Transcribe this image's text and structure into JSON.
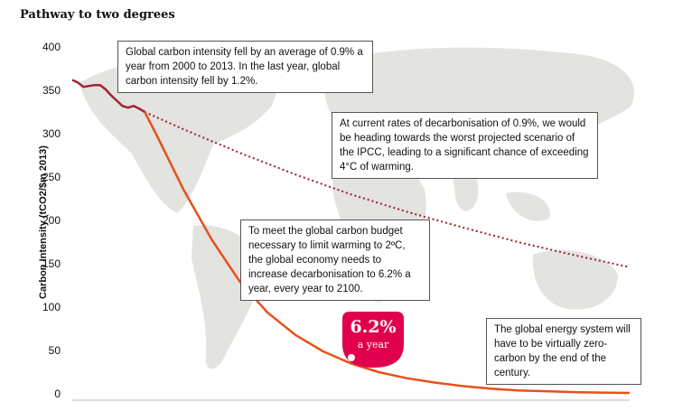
{
  "colors": {
    "historical": "#a12236",
    "current_rate": "#9e1c2a",
    "two_degree": "#e8501a",
    "badge": "#e0004d",
    "map": "#e3e3e0"
  },
  "chart_data": {
    "type": "line",
    "title": "Pathway to two degrees",
    "ylabel": "Carbon Intensity (tCO2/$m 2013)",
    "xlabel": "",
    "ylim": [
      0,
      400
    ],
    "xlim": [
      2000,
      2100
    ],
    "y_ticks": [
      0,
      50,
      100,
      150,
      200,
      250,
      300,
      350,
      400
    ],
    "grid": false,
    "series": [
      {
        "style": "solid-dark",
        "x": [
          2000,
          2001,
          2002,
          2003,
          2004,
          2005,
          2006,
          2007,
          2008,
          2009,
          2010,
          2011,
          2012,
          2013
        ],
        "y": [
          362,
          359,
          354,
          355,
          356,
          356,
          351,
          344,
          338,
          332,
          330,
          332,
          329,
          325
        ]
      },
      {
        "style": "dotted",
        "x": [
          2013,
          2020,
          2030,
          2040,
          2050,
          2060,
          2070,
          2080,
          2090,
          2100
        ],
        "y": [
          325,
          305,
          278,
          253,
          230,
          210,
          192,
          175,
          160,
          146
        ]
      },
      {
        "style": "solid-orange",
        "x": [
          2013,
          2015,
          2020,
          2025,
          2030,
          2035,
          2040,
          2045,
          2050,
          2055,
          2060,
          2065,
          2070,
          2075,
          2080,
          2085,
          2090,
          2095,
          2100
        ],
        "y": [
          325,
          300,
          235,
          178,
          130,
          94,
          68,
          49,
          35,
          25,
          18,
          13,
          9,
          6,
          4,
          3,
          2,
          1.5,
          1
        ]
      }
    ],
    "annotations": [
      "Global carbon intensity fell by an average of 0.9% a year from 2000 to 2013. In the last year, global carbon intensity fell by 1.2%.",
      "At current rates of decarbonisation of 0.9%, we would be heading towards the worst projected scenario of the IPCC, leading to a significant chance of exceeding 4°C of warming.",
      "To meet the global carbon budget necessary to limit warming to 2ºC, the global economy needs to increase decarbonisation to 6.2% a year, every year to 2100.",
      "The global energy system will have to be virtually zero-carbon by the end of the century."
    ]
  },
  "badge": {
    "value": "6.2%",
    "unit": "a year"
  }
}
